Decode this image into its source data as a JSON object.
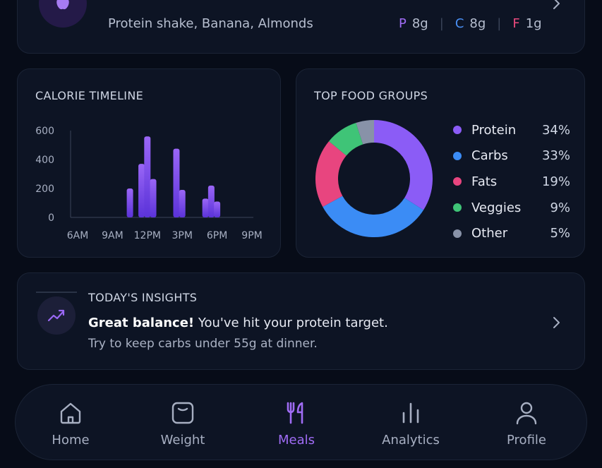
{
  "meal": {
    "items": "Protein shake, Banana, Almonds",
    "macros": [
      {
        "letter": "P",
        "value": "8g",
        "color": "#a06cf5"
      },
      {
        "letter": "C",
        "value": "8g",
        "color": "#4a90f5"
      },
      {
        "letter": "F",
        "value": "1g",
        "color": "#ec4a7e"
      }
    ],
    "icon": "apple-icon"
  },
  "timeline": {
    "title": "CALORIE TIMELINE"
  },
  "chart_data": [
    {
      "type": "bar",
      "title": "CALORIE TIMELINE",
      "ylim": [
        0,
        600
      ],
      "yticks": [
        "600",
        "400",
        "200",
        "0"
      ],
      "xticks": [
        "6AM",
        "9AM",
        "12PM",
        "3PM",
        "6PM",
        "9PM"
      ],
      "x": [
        10.5,
        11.5,
        12,
        12.5,
        14.5,
        15,
        17,
        17.5,
        18
      ],
      "values": [
        200,
        370,
        560,
        265,
        475,
        190,
        130,
        220,
        110
      ],
      "color": "#7b4cf0"
    },
    {
      "type": "pie",
      "title": "TOP FOOD GROUPS",
      "labels": [
        "Protein",
        "Carbs",
        "Fats",
        "Veggies",
        "Other"
      ],
      "values": [
        34,
        33,
        19,
        9,
        5
      ],
      "display": [
        "34%",
        "33%",
        "19%",
        "9%",
        "5%"
      ],
      "colors": [
        "#8b5cf6",
        "#3b8cf5",
        "#e8457f",
        "#3fc477",
        "#8892a8"
      ]
    }
  ],
  "groups": {
    "title": "TOP FOOD GROUPS"
  },
  "insights": {
    "title": "TODAY'S INSIGHTS",
    "headline": "Great balance!",
    "message": "You've hit your protein target.",
    "tip": "Try to keep carbs under 55g at dinner.",
    "icon": "trend-up-icon"
  },
  "nav": {
    "items": [
      {
        "label": "Home",
        "icon": "home-icon",
        "active": false
      },
      {
        "label": "Weight",
        "icon": "scale-icon",
        "active": false
      },
      {
        "label": "Meals",
        "icon": "fork-knife-icon",
        "active": true
      },
      {
        "label": "Analytics",
        "icon": "bar-chart-icon",
        "active": false
      },
      {
        "label": "Profile",
        "icon": "user-icon",
        "active": false
      }
    ],
    "active_color": "#a06cf5"
  }
}
